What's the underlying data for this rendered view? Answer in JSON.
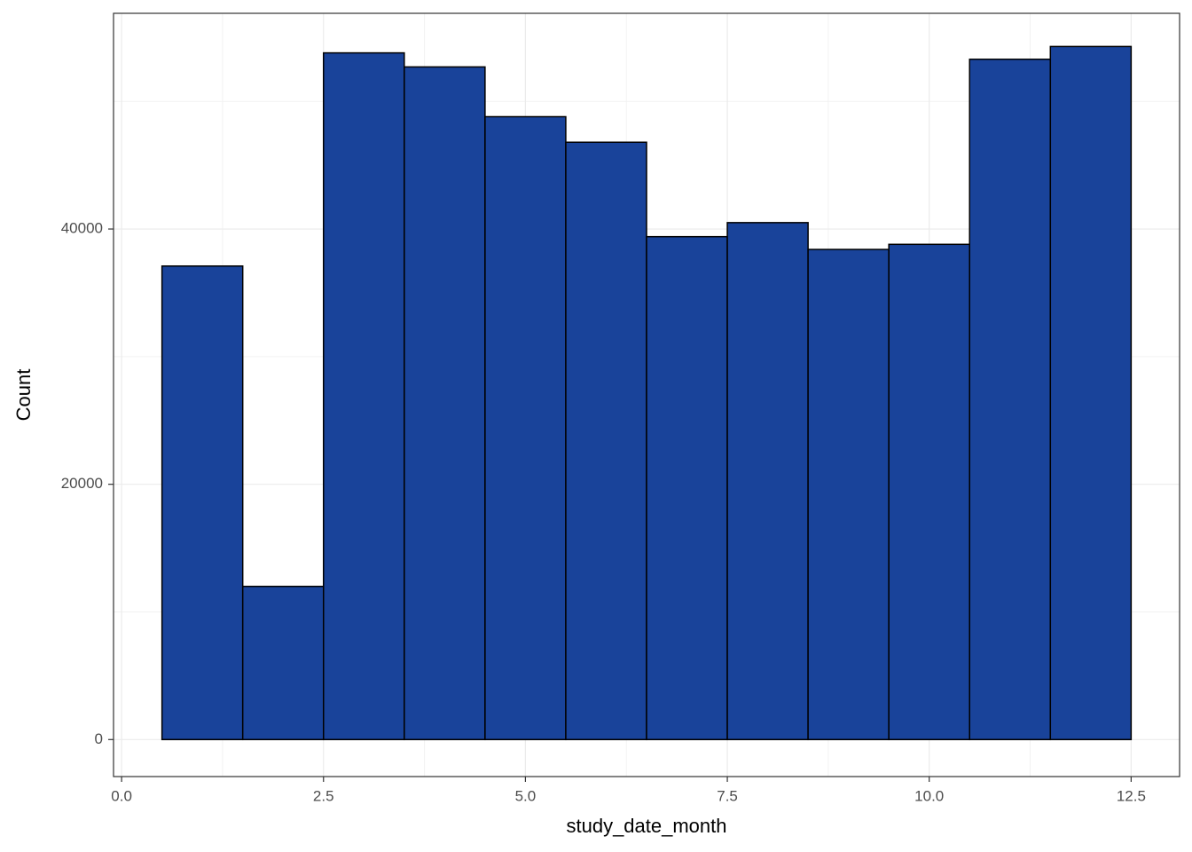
{
  "chart_data": {
    "type": "histogram",
    "x_label": "study_date_month",
    "y_label": "Count",
    "bins": [
      0.5,
      1.5,
      2.5,
      3.5,
      4.5,
      5.5,
      6.5,
      7.5,
      8.5,
      9.5,
      10.5,
      11.5,
      12.5
    ],
    "values": [
      37100,
      12000,
      53800,
      52700,
      48800,
      46800,
      39400,
      40500,
      38400,
      38800,
      53300,
      54300
    ],
    "color": "#19439a",
    "edgecolor": "#000000",
    "xlim": [
      -0.1,
      13.1
    ],
    "ylim": [
      -2900,
      56900
    ],
    "xticks": [
      {
        "value": 0,
        "label": "0.0"
      },
      2.5,
      {
        "value": 5,
        "label": "5.0"
      },
      7.5,
      {
        "value": 10,
        "label": "10.0"
      },
      12.5
    ],
    "yticks": [
      0,
      20000,
      40000
    ],
    "x_minor_grid": [
      1.25,
      3.75,
      6.25,
      8.75,
      11.25
    ],
    "y_minor_grid": [
      10000,
      30000,
      50000
    ],
    "grid": true
  }
}
